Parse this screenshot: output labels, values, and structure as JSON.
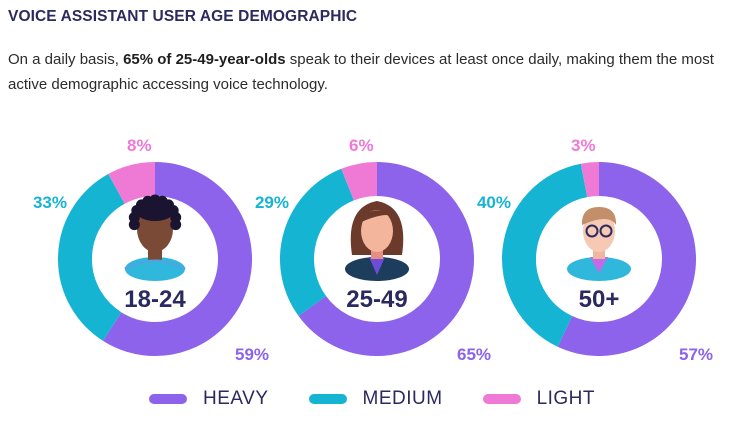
{
  "title": "VOICE ASSISTANT USER AGE DEMOGRAPHIC",
  "subtitle": {
    "before": "On a daily basis, ",
    "bold": "65% of 25-49-year-olds",
    "after": " speak to their devices at least once daily, making them the most active demographic accessing voice technology."
  },
  "colors": {
    "heavy": "#8c63ea",
    "medium": "#16b4d3",
    "light": "#ee7ad6",
    "label_heavy": "#8c63ea",
    "label_medium": "#16b4d3",
    "label_light": "#ee7ad6",
    "center_text": "#2b2a5f"
  },
  "legend": [
    {
      "label": "HEAVY",
      "color": "#8c63ea"
    },
    {
      "label": "MEDIUM",
      "color": "#16b4d3"
    },
    {
      "label": "LIGHT",
      "color": "#ee7ad6"
    }
  ],
  "chart_data": [
    {
      "type": "pie",
      "center_label": "18-24",
      "icon": "young-man-avatar-icon",
      "categories": [
        "HEAVY",
        "MEDIUM",
        "LIGHT"
      ],
      "values": [
        59,
        33,
        8
      ],
      "labels": [
        "59%",
        "33%",
        "8%"
      ]
    },
    {
      "type": "pie",
      "center_label": "25-49",
      "icon": "woman-avatar-icon",
      "categories": [
        "HEAVY",
        "MEDIUM",
        "LIGHT"
      ],
      "values": [
        65,
        29,
        6
      ],
      "labels": [
        "65%",
        "29%",
        "6%"
      ]
    },
    {
      "type": "pie",
      "center_label": "50+",
      "icon": "older-man-glasses-avatar-icon",
      "categories": [
        "HEAVY",
        "MEDIUM",
        "LIGHT"
      ],
      "values": [
        57,
        40,
        3
      ],
      "labels": [
        "57%",
        "40%",
        "3%"
      ]
    }
  ]
}
